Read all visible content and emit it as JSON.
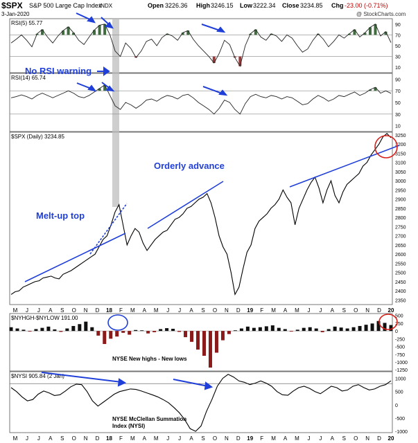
{
  "header": {
    "symbol": "$SPX",
    "name": "S&P 500 Large Cap Index",
    "exchange": "INDX",
    "date": "3-Jan-2020",
    "open_label": "Open",
    "open": "3226.36",
    "high_label": "High",
    "high": "3246.15",
    "low_label": "Low",
    "low": "3222.34",
    "close_label": "Close",
    "close": "3234.85",
    "chg_label": "Chg",
    "chg": "-23.00 (-0.71%)",
    "watermark": "@ StockCharts.com"
  },
  "colors": {
    "price": "#000000",
    "annotation": "#1f3fd8",
    "red_circle": "#d8201a",
    "positive": "#111111",
    "negative": "#8b1a1a",
    "rsi_overbought": "#3f6b3f",
    "rsi_oversold": "#9a3b3b",
    "grey_bar": "#bdbdbd"
  },
  "annotations": {
    "no_rsi_warning": "No RSI warning",
    "orderly_advance": "Orderly advance",
    "melt_up_top": "Melt-up top",
    "new_highs_lows": "NYSE New highs - New lows",
    "nysi_1": "NYSE McClellan Summation",
    "nysi_2": "Index (NYSI)"
  },
  "chart_data": [
    {
      "type": "line",
      "panel": "RSI(5)",
      "label": "RSI(5) 55.77",
      "y_ticks": [
        90,
        70,
        50,
        30,
        10
      ],
      "ylim": [
        0,
        100
      ],
      "bands": [
        30,
        70
      ],
      "values": [
        55,
        62,
        70,
        60,
        48,
        72,
        80,
        66,
        55,
        68,
        78,
        85,
        74,
        60,
        52,
        66,
        79,
        88,
        90,
        70,
        40,
        30,
        55,
        45,
        28,
        40,
        58,
        62,
        50,
        65,
        72,
        68,
        60,
        74,
        78,
        62,
        50,
        40,
        30,
        18,
        36,
        60,
        52,
        28,
        12,
        50,
        72,
        80,
        66,
        60,
        72,
        68,
        58,
        70,
        64,
        50,
        38,
        44,
        60,
        72,
        62,
        48,
        58,
        70,
        64,
        72,
        80,
        66,
        74,
        84,
        90,
        68,
        76,
        55.77
      ]
    },
    {
      "type": "line",
      "panel": "RSI(14)",
      "label": "RSI(14) 65.74",
      "y_ticks": [
        90,
        70,
        50,
        30,
        10
      ],
      "ylim": [
        0,
        100
      ],
      "bands": [
        30,
        70
      ],
      "values": [
        58,
        60,
        63,
        60,
        56,
        62,
        66,
        62,
        58,
        62,
        66,
        70,
        66,
        60,
        58,
        62,
        68,
        74,
        80,
        62,
        44,
        38,
        50,
        46,
        40,
        46,
        54,
        56,
        52,
        58,
        62,
        60,
        56,
        62,
        64,
        58,
        50,
        44,
        38,
        30,
        40,
        54,
        50,
        38,
        30,
        48,
        60,
        64,
        60,
        58,
        62,
        60,
        56,
        60,
        58,
        52,
        46,
        48,
        56,
        62,
        58,
        52,
        56,
        62,
        60,
        64,
        68,
        62,
        66,
        72,
        76,
        66,
        70,
        65.74
      ]
    },
    {
      "type": "line",
      "panel": "$SPX (Daily)",
      "label": "$SPX (Daily) 3234.85",
      "x_ticks": [
        "M",
        "J",
        "J",
        "A",
        "S",
        "O",
        "N",
        "D",
        "18",
        "F",
        "M",
        "A",
        "M",
        "J",
        "J",
        "A",
        "S",
        "O",
        "N",
        "D",
        "19",
        "F",
        "M",
        "A",
        "M",
        "J",
        "J",
        "A",
        "S",
        "O",
        "N",
        "D",
        "20"
      ],
      "y_ticks": [
        3250,
        3200,
        3150,
        3100,
        3050,
        3000,
        2950,
        2900,
        2850,
        2800,
        2750,
        2700,
        2650,
        2600,
        2550,
        2500,
        2450,
        2400,
        2350
      ],
      "ylim": [
        2325,
        3265
      ],
      "values": [
        2380,
        2395,
        2400,
        2420,
        2430,
        2440,
        2450,
        2455,
        2470,
        2475,
        2480,
        2470,
        2465,
        2490,
        2500,
        2510,
        2525,
        2540,
        2555,
        2570,
        2585,
        2600,
        2640,
        2680,
        2700,
        2760,
        2830,
        2870,
        2760,
        2650,
        2700,
        2740,
        2720,
        2660,
        2620,
        2650,
        2680,
        2700,
        2720,
        2730,
        2760,
        2790,
        2800,
        2820,
        2850,
        2860,
        2880,
        2900,
        2910,
        2930,
        2880,
        2800,
        2700,
        2640,
        2600,
        2500,
        2380,
        2420,
        2520,
        2610,
        2650,
        2740,
        2780,
        2800,
        2820,
        2850,
        2870,
        2900,
        2950,
        2910,
        2880,
        2760,
        2850,
        2900,
        2950,
        2990,
        3020,
        2960,
        2880,
        2950,
        3000,
        2920,
        2880,
        2940,
        2980,
        3000,
        3020,
        3040,
        3080,
        3100,
        3140,
        3170,
        3200,
        3240,
        3258,
        3234.85
      ]
    },
    {
      "type": "bar",
      "panel": "$NYHGH-$NYLOW",
      "label": "$NYHGH-$NYLOW 191.00",
      "y_ticks": [
        500,
        250,
        0,
        -250,
        -500,
        -750,
        -1000,
        -1250
      ],
      "ylim": [
        -1290,
        560
      ],
      "values": [
        120,
        80,
        40,
        -20,
        60,
        100,
        140,
        50,
        -30,
        80,
        160,
        220,
        300,
        120,
        -150,
        -420,
        -250,
        -180,
        -60,
        -120,
        30,
        20,
        -80,
        -40,
        60,
        90,
        70,
        -30,
        -200,
        -350,
        -600,
        -800,
        -1180,
        -700,
        -300,
        -100,
        20,
        80,
        140,
        100,
        120,
        150,
        180,
        100,
        60,
        -20,
        40,
        100,
        120,
        80,
        -40,
        60,
        140,
        110,
        80,
        120,
        160,
        200,
        240,
        320,
        260,
        191
      ]
    },
    {
      "type": "line",
      "panel": "$NYSI",
      "label": "$NYSI 905.84 (2 Jan)",
      "y_ticks": [
        1000,
        500,
        0,
        -500,
        -1000
      ],
      "ylim": [
        -1050,
        1250
      ],
      "values": [
        650,
        500,
        300,
        150,
        200,
        400,
        520,
        450,
        350,
        380,
        520,
        680,
        780,
        760,
        500,
        150,
        -50,
        100,
        250,
        400,
        500,
        550,
        600,
        580,
        520,
        450,
        380,
        300,
        200,
        80,
        -100,
        -300,
        -560,
        -900,
        -1000,
        -800,
        -250,
        200,
        700,
        1000,
        1150,
        1050,
        900,
        850,
        760,
        820,
        900,
        820,
        700,
        500,
        380,
        360,
        520,
        650,
        700,
        620,
        500,
        420,
        560,
        700,
        650,
        520,
        560,
        700,
        760,
        650,
        560,
        600,
        700,
        760,
        905.84
      ]
    }
  ],
  "axes_bottom": [
    "M",
    "J",
    "J",
    "A",
    "S",
    "O",
    "N",
    "D",
    "18",
    "F",
    "M",
    "A",
    "M",
    "J",
    "J",
    "A",
    "S",
    "O",
    "N",
    "D",
    "19",
    "F",
    "M",
    "A",
    "M",
    "J",
    "J",
    "A",
    "S",
    "O",
    "N",
    "D",
    "20"
  ]
}
